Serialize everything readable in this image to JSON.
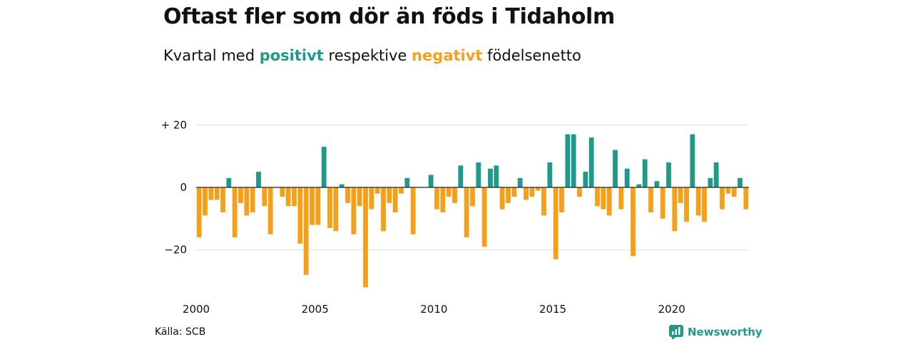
{
  "colors": {
    "positive": "#1f9a8a",
    "negative": "#f5a01a",
    "grid": "#dddddd",
    "zero": "#222222"
  },
  "header": {
    "title": "Oftast fler som dör än föds i Tidaholm",
    "subtitle_prefix": "Kvartal med",
    "subtitle_positive": "positivt",
    "subtitle_middle": "respektive",
    "subtitle_negative": "negativt",
    "subtitle_suffix": "födelsenetto"
  },
  "footer": {
    "source": "Källa: SCB",
    "brand": "Newsworthy",
    "brand_icon": "chart-icon"
  },
  "chart_data": {
    "type": "bar",
    "x_start": "2000 Q1",
    "frequency": "quarterly",
    "values": [
      -16,
      -9,
      -4,
      -4,
      -8,
      3,
      -16,
      -5,
      -9,
      -8,
      5,
      -6,
      -15,
      0,
      -3,
      -6,
      -6,
      -18,
      -28,
      -12,
      -12,
      13,
      -13,
      -14,
      1,
      -5,
      -15,
      -6,
      -32,
      -7,
      -2,
      -14,
      -5,
      -8,
      -2,
      3,
      -15,
      0,
      0,
      4,
      -7,
      -8,
      -3,
      -5,
      7,
      -16,
      -6,
      8,
      -19,
      6,
      7,
      -7,
      -5,
      -3,
      3,
      -4,
      -3,
      -1,
      -9,
      8,
      -23,
      -8,
      17,
      17,
      -3,
      5,
      16,
      -6,
      -7,
      -9,
      12,
      -7,
      6,
      -22,
      1,
      9,
      -8,
      2,
      -10,
      8,
      -14,
      -5,
      -11,
      17,
      -9,
      -11,
      3,
      8,
      -7,
      -2,
      -3,
      3,
      -7
    ],
    "xticks": [
      {
        "x": 2000,
        "label": "2000"
      },
      {
        "x": 2005,
        "label": "2005"
      },
      {
        "x": 2010,
        "label": "2010"
      },
      {
        "x": 2015,
        "label": "2015"
      },
      {
        "x": 2020,
        "label": "2020"
      }
    ],
    "yticks": [
      {
        "y": 20,
        "label": "+ 20"
      },
      {
        "y": 0,
        "label": "0"
      },
      {
        "y": -20,
        "label": "−20"
      }
    ],
    "ylim": [
      -33,
      21
    ],
    "xlim": [
      2000,
      2023.25
    ],
    "grid": true,
    "title": "Oftast fler som dör än föds i Tidaholm",
    "xlabel": "",
    "ylabel": ""
  }
}
